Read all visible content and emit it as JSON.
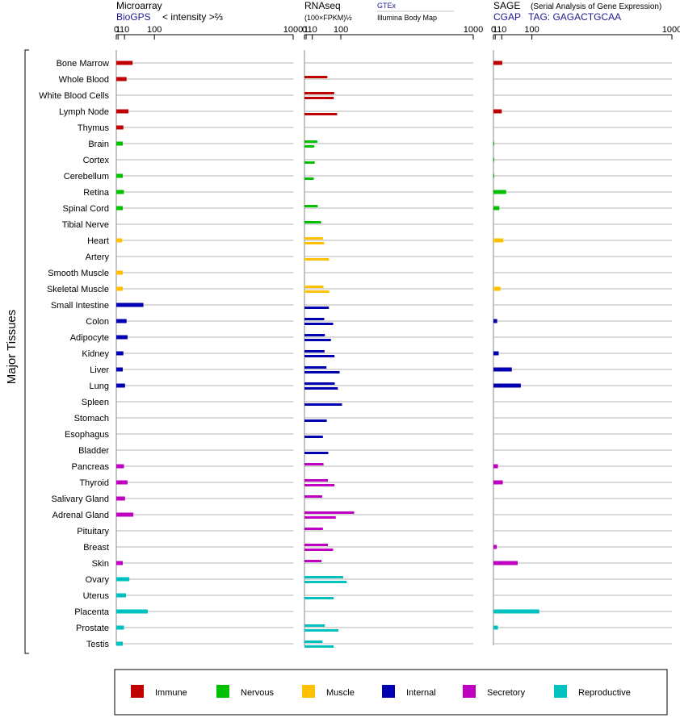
{
  "page": {
    "y_axis_label": "Major Tissues"
  },
  "legend": [
    {
      "name": "Immune",
      "color": "#c00000"
    },
    {
      "name": "Nervous",
      "color": "#00c000"
    },
    {
      "name": "Muscle",
      "color": "#ffc000"
    },
    {
      "name": "Internal",
      "color": "#0000b0"
    },
    {
      "name": "Secretory",
      "color": "#c000c0"
    },
    {
      "name": "Reproductive",
      "color": "#00c0c0"
    }
  ],
  "chart_data": {
    "type": "bar",
    "orientation": "horizontal",
    "axis_transform": "power 2/3 (cube-root-squared) scale",
    "tick_labels": [
      "0",
      "1",
      "10",
      "100",
      "1000"
    ],
    "xlim": [
      0,
      1000
    ],
    "grid": true,
    "legend_position": "bottom",
    "tissues": [
      {
        "name": "Bone Marrow",
        "system": "Immune"
      },
      {
        "name": "Whole Blood",
        "system": "Immune"
      },
      {
        "name": "White Blood Cells",
        "system": "Immune"
      },
      {
        "name": "Lymph Node",
        "system": "Immune"
      },
      {
        "name": "Thymus",
        "system": "Immune"
      },
      {
        "name": "Brain",
        "system": "Nervous"
      },
      {
        "name": "Cortex",
        "system": "Nervous"
      },
      {
        "name": "Cerebellum",
        "system": "Nervous"
      },
      {
        "name": "Retina",
        "system": "Nervous"
      },
      {
        "name": "Spinal Cord",
        "system": "Nervous"
      },
      {
        "name": "Tibial Nerve",
        "system": "Nervous"
      },
      {
        "name": "Heart",
        "system": "Muscle"
      },
      {
        "name": "Artery",
        "system": "Muscle"
      },
      {
        "name": "Smooth Muscle",
        "system": "Muscle"
      },
      {
        "name": "Skeletal Muscle",
        "system": "Muscle"
      },
      {
        "name": "Small Intestine",
        "system": "Internal"
      },
      {
        "name": "Colon",
        "system": "Internal"
      },
      {
        "name": "Adipocyte",
        "system": "Internal"
      },
      {
        "name": "Kidney",
        "system": "Internal"
      },
      {
        "name": "Liver",
        "system": "Internal"
      },
      {
        "name": "Lung",
        "system": "Internal"
      },
      {
        "name": "Spleen",
        "system": "Internal"
      },
      {
        "name": "Stomach",
        "system": "Internal"
      },
      {
        "name": "Esophagus",
        "system": "Internal"
      },
      {
        "name": "Bladder",
        "system": "Internal"
      },
      {
        "name": "Pancreas",
        "system": "Secretory"
      },
      {
        "name": "Thyroid",
        "system": "Secretory"
      },
      {
        "name": "Salivary Gland",
        "system": "Secretory"
      },
      {
        "name": "Adrenal Gland",
        "system": "Secretory"
      },
      {
        "name": "Pituitary",
        "system": "Secretory"
      },
      {
        "name": "Breast",
        "system": "Secretory"
      },
      {
        "name": "Skin",
        "system": "Secretory"
      },
      {
        "name": "Ovary",
        "system": "Reproductive"
      },
      {
        "name": "Uterus",
        "system": "Reproductive"
      },
      {
        "name": "Placenta",
        "system": "Reproductive"
      },
      {
        "name": "Prostate",
        "system": "Reproductive"
      },
      {
        "name": "Testis",
        "system": "Reproductive"
      }
    ],
    "panels": [
      {
        "key": "microarray",
        "title": "Microarray",
        "subtitle": "BioGPS",
        "subtitle_note": "< intensity >⅔",
        "values": [
          28,
          14,
          null,
          18,
          8,
          7,
          null,
          7,
          9,
          7,
          null,
          6,
          null,
          7,
          7,
          60,
          14,
          16,
          8,
          7,
          11,
          null,
          null,
          null,
          null,
          9,
          16,
          11,
          30,
          null,
          null,
          7,
          20,
          13,
          75,
          9,
          7
        ]
      },
      {
        "key": "rnaseq",
        "title": "RNAseq",
        "subtitle": "(100×FPKM)½",
        "series_names": [
          "GTEx",
          "Illumina Body Map"
        ],
        "values": [
          [
            null,
            50,
            74,
            null,
            null,
            21,
            null,
            null,
            null,
            22,
            31,
            36,
            null,
            null,
            38,
            null,
            40,
            42,
            41,
            47,
            76,
            null,
            null,
            null,
            null,
            38,
            52,
            34,
            160,
            36,
            52,
            32,
            110,
            null,
            null,
            42,
            35
          ],
          [
            null,
            null,
            72,
            85,
            null,
            14,
            15,
            13,
            null,
            null,
            null,
            40,
            55,
            null,
            56,
            55,
            70,
            62,
            75,
            95,
            88,
            105,
            48,
            36,
            53,
            null,
            75,
            null,
            80,
            null,
            70,
            null,
            125,
            72,
            null,
            90,
            72
          ]
        ]
      },
      {
        "key": "sage",
        "title": "SAGE",
        "title_note": "(Serial Analysis of Gene Expression)",
        "subtitle": "CGAP",
        "subtitle_note": "TAG: GAGACTGCAA",
        "values": [
          11,
          null,
          null,
          10,
          null,
          0.3,
          0.3,
          0.3,
          19,
          6,
          null,
          13,
          null,
          null,
          8,
          null,
          3,
          null,
          5,
          33,
          60,
          null,
          null,
          null,
          null,
          4,
          12,
          null,
          null,
          null,
          2.5,
          50,
          null,
          null,
          130,
          4,
          null
        ]
      }
    ]
  }
}
